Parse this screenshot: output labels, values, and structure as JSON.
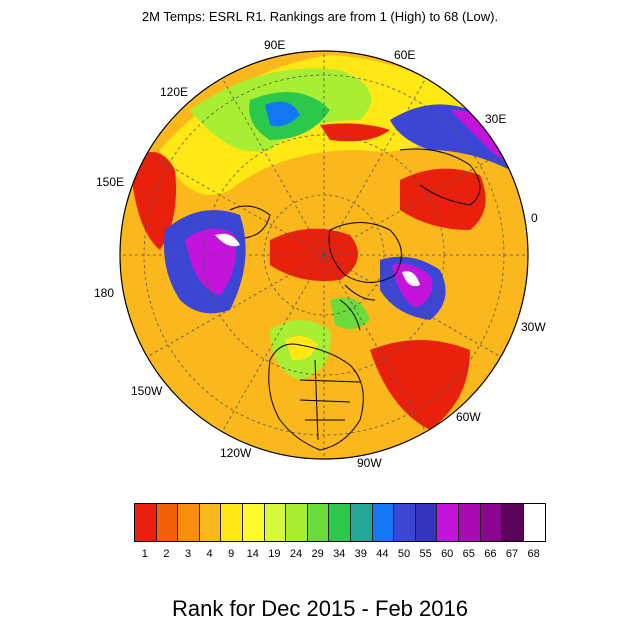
{
  "title": "2M Temps: ESRL R1. Rankings are from 1 (High) to 68 (Low).",
  "bottom_title": "Rank for Dec 2015 - Feb 2016",
  "longitude_labels": [
    "90E",
    "60E",
    "30E",
    "0",
    "30W",
    "60W",
    "90W",
    "120W",
    "150W",
    "180",
    "150E",
    "120E"
  ],
  "colorbar": {
    "labels": [
      "1",
      "2",
      "3",
      "4",
      "9",
      "14",
      "19",
      "24",
      "29",
      "34",
      "39",
      "44",
      "50",
      "55",
      "60",
      "65",
      "66",
      "67",
      "68"
    ],
    "colors": [
      "#e8200c",
      "#f2600c",
      "#f98f0c",
      "#fbb81c",
      "#ffe814",
      "#fcfc2c",
      "#d8f83c",
      "#a8ee32",
      "#6cdc3c",
      "#2cc84c",
      "#26a698",
      "#1478f4",
      "#3c46d4",
      "#3434bc",
      "#c414dc",
      "#a80ab4",
      "#8a068e",
      "#5c045c",
      "#ffffff"
    ]
  },
  "map_colors": {
    "rank_1": "#e8200c",
    "rank_4": "#fbb81c",
    "rank_14": "#fcfc2c",
    "rank_29": "#6cdc3c",
    "rank_44": "#1478f4",
    "rank_60": "#c414dc",
    "rank_68": "#ffffff"
  }
}
